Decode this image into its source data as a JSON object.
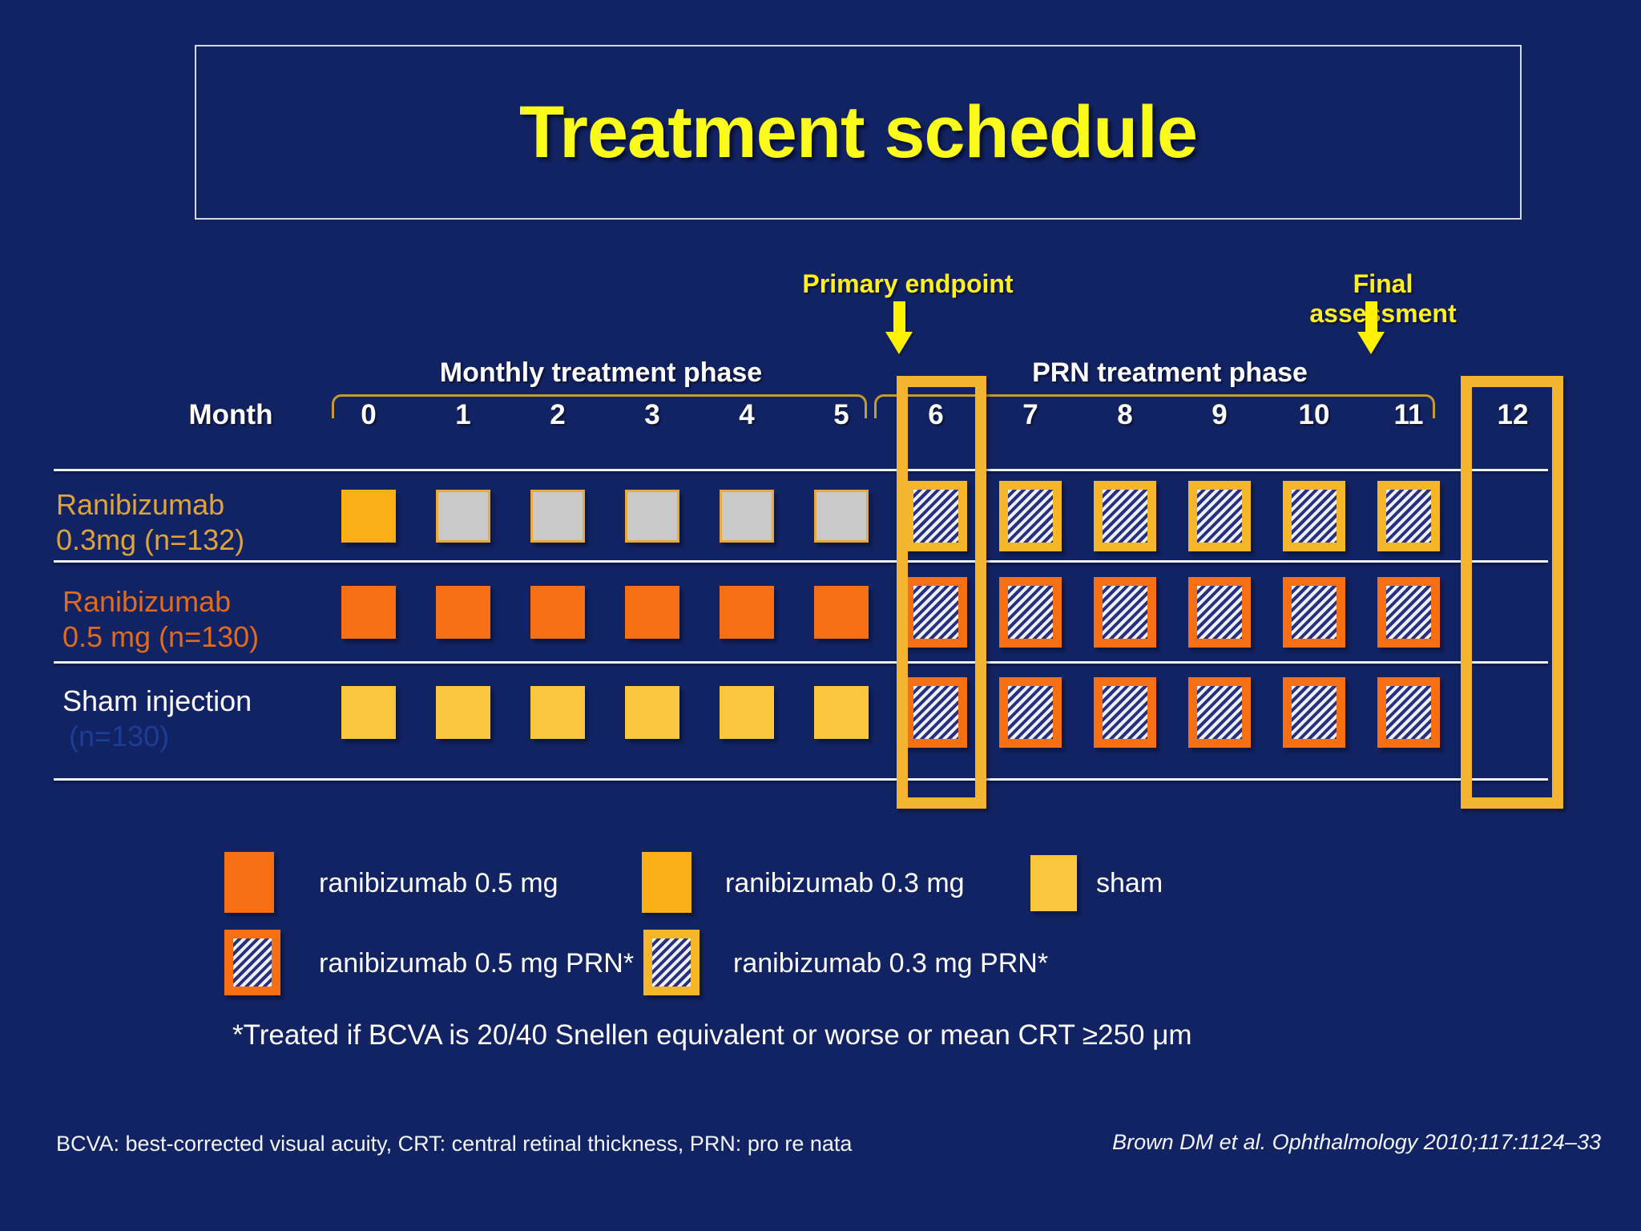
{
  "title": "Treatment schedule",
  "annotations": {
    "primary_endpoint": "Primary endpoint",
    "final_assessment": "Final assessment"
  },
  "phase_labels": {
    "monthly": "Monthly treatment phase",
    "prn": "PRN treatment phase"
  },
  "timeline": {
    "axis_label": "Month",
    "months": [
      "0",
      "1",
      "2",
      "3",
      "4",
      "5",
      "6",
      "7",
      "8",
      "9",
      "10",
      "11",
      "12"
    ]
  },
  "schedule": {
    "rows": [
      {
        "id": "ranibizumab-0.3mg",
        "label_line1": "Ranibizumab",
        "label_line2": "0.3mg (n=132)",
        "cells": [
          "r03",
          "gray",
          "gray",
          "gray",
          "gray",
          "gray",
          "prn-amber",
          "prn-amber",
          "prn-amber",
          "prn-amber",
          "prn-amber",
          "prn-amber",
          ""
        ]
      },
      {
        "id": "ranibizumab-0.5mg",
        "label_line1": "Ranibizumab",
        "label_line2": "0.5 mg (n=130)",
        "cells": [
          "r05",
          "r05",
          "r05",
          "r05",
          "r05",
          "r05",
          "prn-orange",
          "prn-orange",
          "prn-orange",
          "prn-orange",
          "prn-orange",
          "prn-orange",
          ""
        ]
      },
      {
        "id": "sham-injection",
        "label_line1": "Sham injection",
        "label_line2": "(n=130)",
        "cells": [
          "sham",
          "sham",
          "sham",
          "sham",
          "sham",
          "sham",
          "prn-orange",
          "prn-orange",
          "prn-orange",
          "prn-orange",
          "prn-orange",
          "prn-orange",
          ""
        ]
      }
    ]
  },
  "legend": {
    "row1": [
      {
        "swatch": "r05",
        "label": "ranibizumab 0.5 mg"
      },
      {
        "swatch": "r03",
        "label": "ranibizumab 0.3 mg"
      },
      {
        "swatch": "sham",
        "label": "sham"
      }
    ],
    "row2": [
      {
        "swatch": "prn-orange",
        "label": "ranibizumab 0.5 mg PRN*"
      },
      {
        "swatch": "prn-amber",
        "label": "ranibizumab 0.3 mg PRN*"
      }
    ],
    "footnote": "*Treated if BCVA is 20/40 Snellen equivalent or worse or mean CRT ≥250 μm"
  },
  "footer": {
    "abbreviations": "BCVA: best-corrected visual acuity, CRT: central retinal thickness, PRN: pro re nata",
    "citation": "Brown DM et al. Ophthalmology 2010;117:1124–33"
  },
  "colors": {
    "background": "#122364",
    "title_yellow": "#fbfb1c",
    "annotation_yellow": "#fef01f",
    "highlight_box_gold": "#f3b52f",
    "bracket_gold": "#c9992b",
    "ranibizumab_05_orange": "#f66f12",
    "ranibizumab_03_amber": "#fbae17",
    "sham_yellow": "#fbc53d",
    "monthly_gray": "#c9c9c9",
    "hatch_navy": "#28317f",
    "row1_label_gold": "#dfa33c",
    "row2_label_orange": "#e06a1e",
    "sham_n_faint_blue": "#1d3c96"
  }
}
